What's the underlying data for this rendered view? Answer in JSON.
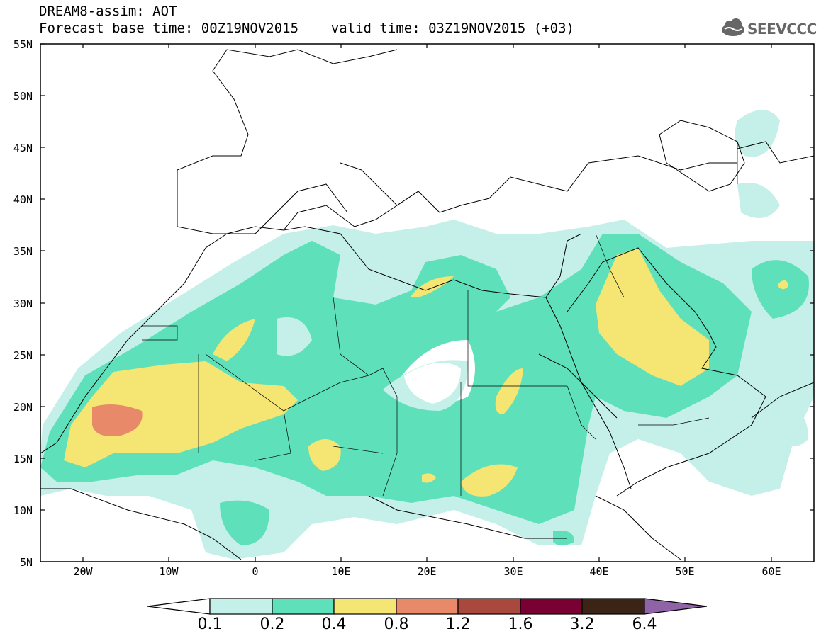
{
  "header": {
    "line1": "DREAM8-assim: AOT",
    "line2": "Forecast base time: 00Z19NOV2015    valid time: 03Z19NOV2015 (+03)"
  },
  "logo": {
    "text": "SEEVCCC",
    "icon": "cloud-logo-icon"
  },
  "map": {
    "lat_labels": [
      "55N",
      "50N",
      "45N",
      "40N",
      "35N",
      "30N",
      "25N",
      "20N",
      "15N",
      "10N",
      "5N"
    ],
    "lon_labels": [
      "20W",
      "10W",
      "0",
      "10E",
      "20E",
      "30E",
      "40E",
      "50E",
      "60E"
    ],
    "lon_range": [
      -25,
      65
    ],
    "lat_range": [
      5,
      55
    ],
    "coastlines": "black"
  },
  "colorbar": {
    "levels": [
      "0.1",
      "0.2",
      "0.4",
      "0.8",
      "1.2",
      "1.6",
      "3.2",
      "6.4"
    ],
    "colors": [
      "#ffffff",
      "#c4f0e9",
      "#5ee0bb",
      "#f5e573",
      "#e8896a",
      "#a9493e",
      "#7a0033",
      "#3b2316",
      "#8f63a6"
    ]
  }
}
